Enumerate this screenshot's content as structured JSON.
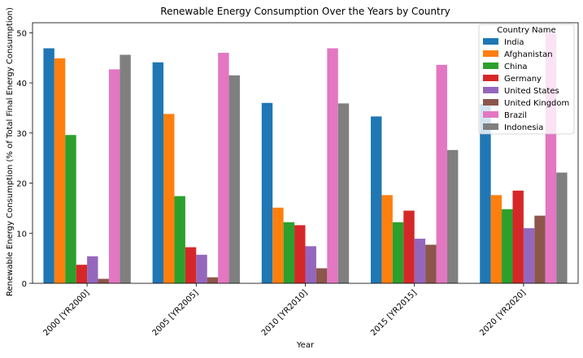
{
  "chart_data": {
    "type": "bar",
    "title": "Renewable Energy Consumption Over the Years by Country",
    "xlabel": "Year",
    "ylabel": "Renewable Energy Consumption (% of Total Final Energy Consumption)",
    "categories": [
      "2000 [YR2000]",
      "2005 [YR2005]",
      "2010 [YR2010]",
      "2015 [YR2015]",
      "2020 [YR2020]"
    ],
    "ylim": [
      0,
      52
    ],
    "yticks": [
      0,
      10,
      20,
      30,
      40,
      50
    ],
    "legend_title": "Country Name",
    "legend_position": "top-right",
    "grid": false,
    "series": [
      {
        "name": "India",
        "color": "#1f77b4",
        "values": [
          46.9,
          44.1,
          36.0,
          33.3,
          35.8
        ]
      },
      {
        "name": "Afghanistan",
        "color": "#ff7f0e",
        "values": [
          44.9,
          33.8,
          15.1,
          17.6,
          17.6
        ]
      },
      {
        "name": "China",
        "color": "#2ca02c",
        "values": [
          29.6,
          17.4,
          12.2,
          12.2,
          14.8
        ]
      },
      {
        "name": "Germany",
        "color": "#d62728",
        "values": [
          3.7,
          7.2,
          11.6,
          14.5,
          18.5
        ]
      },
      {
        "name": "United States",
        "color": "#9467bd",
        "values": [
          5.4,
          5.7,
          7.4,
          8.9,
          11.0
        ]
      },
      {
        "name": "United Kingdom",
        "color": "#8c564b",
        "values": [
          0.9,
          1.2,
          3.0,
          7.7,
          13.5
        ]
      },
      {
        "name": "Brazil",
        "color": "#e377c2",
        "values": [
          42.7,
          46.0,
          46.9,
          43.6,
          50.0
        ]
      },
      {
        "name": "Indonesia",
        "color": "#7f7f7f",
        "values": [
          45.6,
          41.5,
          35.9,
          26.6,
          22.1
        ]
      }
    ]
  }
}
